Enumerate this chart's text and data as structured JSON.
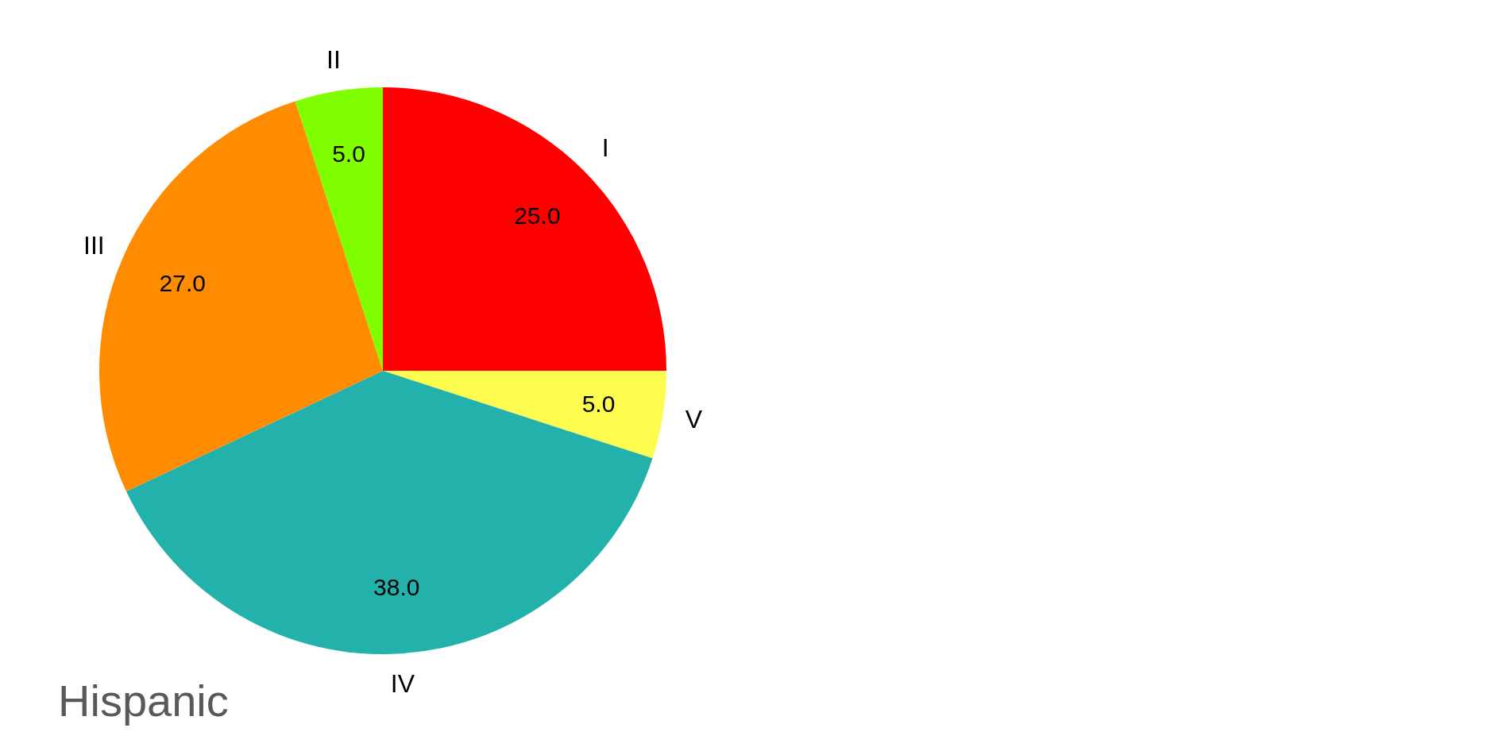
{
  "chart_data": {
    "type": "pie",
    "title": "Hispanic",
    "categories": [
      "I",
      "V",
      "IV",
      "III",
      "II"
    ],
    "values": [
      25,
      5,
      38,
      27,
      5
    ],
    "value_labels": [
      "25.0",
      "5.0",
      "38.0",
      "27.0",
      "5.0"
    ],
    "colors": [
      "#ff0000",
      "#fdfc4f",
      "#22b2ab",
      "#ff8c00",
      "#7fff00"
    ],
    "legend": false
  }
}
